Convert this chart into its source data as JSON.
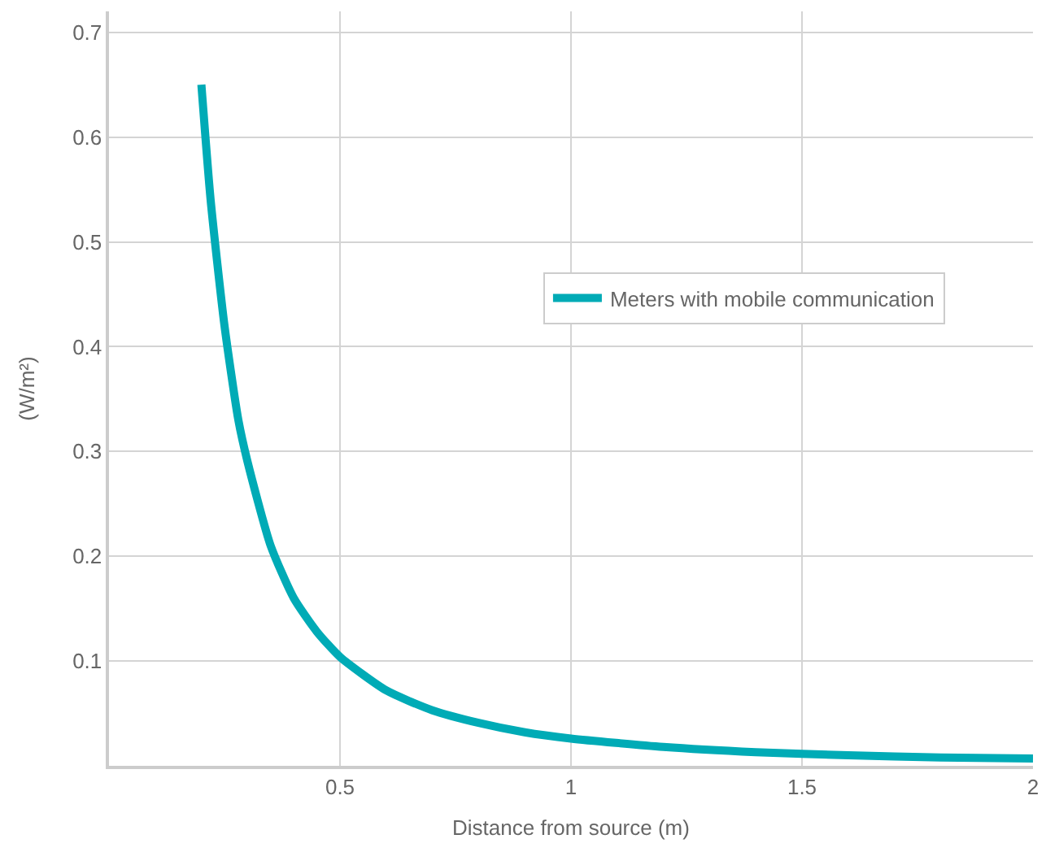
{
  "chart_data": {
    "type": "line",
    "xlabel": "Distance from source (m)",
    "ylabel": "(W/m²)",
    "x": [
      0.2,
      0.22,
      0.25,
      0.28,
      0.3,
      0.35,
      0.4,
      0.45,
      0.5,
      0.6,
      0.7,
      0.8,
      0.9,
      1.0,
      1.2,
      1.4,
      1.6,
      1.8,
      2.0
    ],
    "series": [
      {
        "name": "Meters with mobile communication",
        "color": "#00abb6",
        "values": [
          0.65,
          0.54,
          0.42,
          0.33,
          0.29,
          0.21,
          0.16,
          0.128,
          0.104,
          0.072,
          0.053,
          0.041,
          0.032,
          0.026,
          0.018,
          0.013,
          0.01,
          0.008,
          0.007
        ]
      }
    ],
    "xlim": [
      0,
      2
    ],
    "ylim": [
      0,
      0.72
    ],
    "xticks": [
      0.5,
      1,
      1.5,
      2
    ],
    "yticks": [
      0.1,
      0.2,
      0.3,
      0.4,
      0.5,
      0.6,
      0.7
    ],
    "grid": true,
    "legend": "right",
    "marker": "none",
    "line_style": "solid"
  }
}
